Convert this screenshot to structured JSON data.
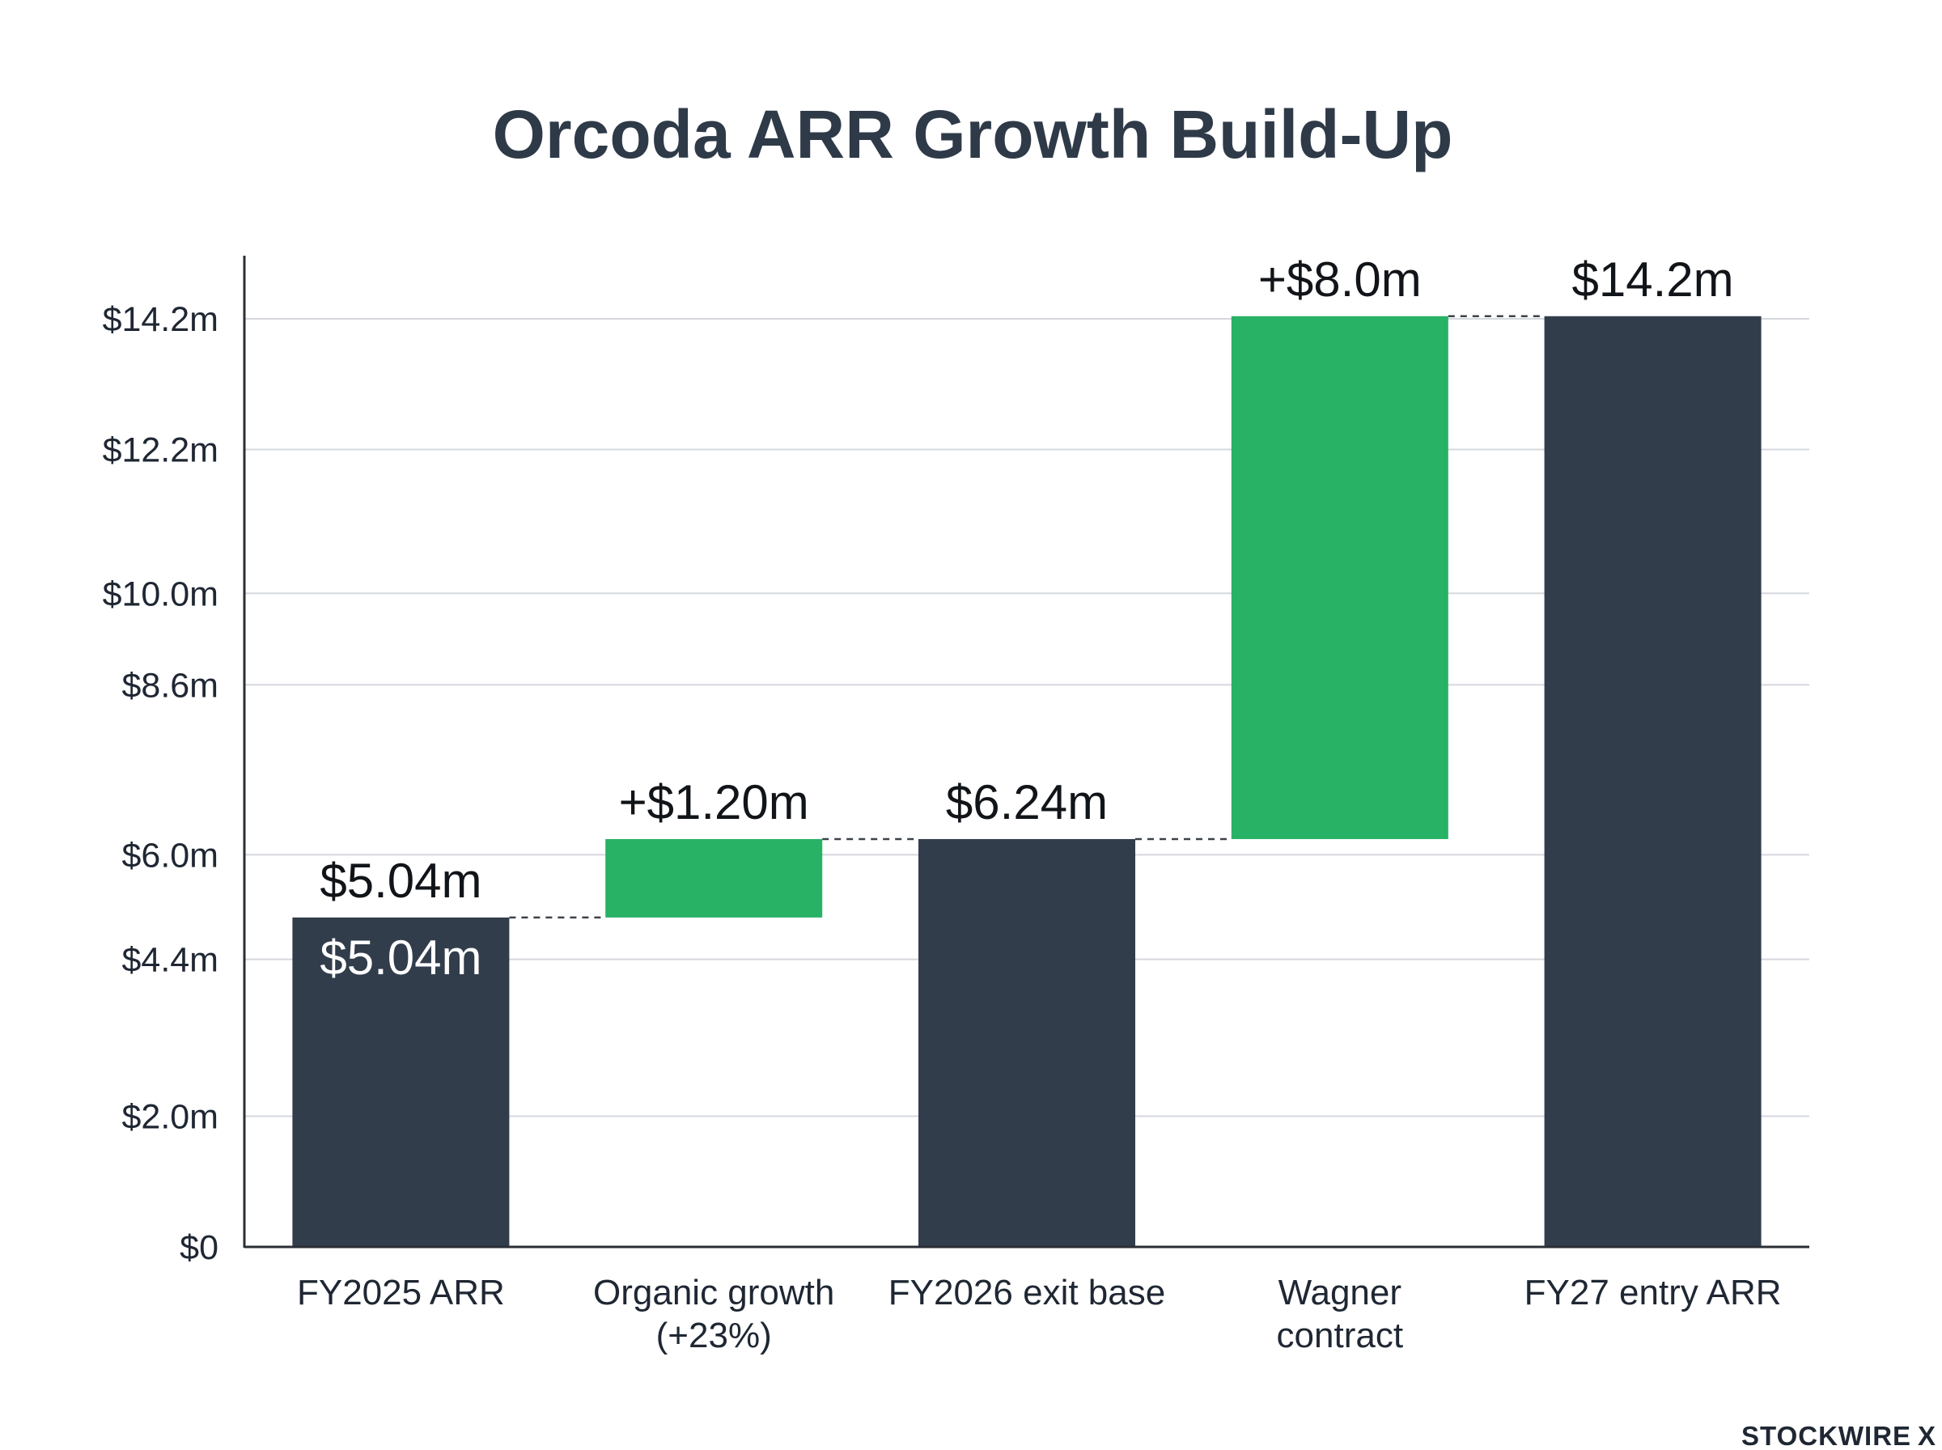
{
  "chart_data": {
    "type": "bar",
    "subtype": "waterfall",
    "title": "Orcoda ARR Growth Build-Up",
    "xlabel": "",
    "ylabel": "",
    "ylim": [
      0,
      14.2
    ],
    "y_ticks": [
      {
        "value": 0,
        "label": "$0"
      },
      {
        "value": 2.0,
        "label": "$2.0m"
      },
      {
        "value": 4.4,
        "label": "$4.4m"
      },
      {
        "value": 6.0,
        "label": "$6.0m"
      },
      {
        "value": 8.6,
        "label": "$8.6m"
      },
      {
        "value": 10.0,
        "label": "$10.0m"
      },
      {
        "value": 12.2,
        "label": "$12.2m"
      },
      {
        "value": 14.2,
        "label": "$14.2m"
      }
    ],
    "grid": true,
    "categories": [
      [
        "FY2025 ARR"
      ],
      [
        "Organic growth",
        "(+23%)"
      ],
      [
        "FY2026 exit base"
      ],
      [
        "Wagner",
        "contract"
      ],
      [
        "FY27 entry ARR"
      ]
    ],
    "bars": [
      {
        "kind": "total",
        "start": 0,
        "end": 5.04,
        "label": "$5.04m",
        "inner_label": "$5.04m"
      },
      {
        "kind": "increase",
        "start": 5.04,
        "end": 6.24,
        "label": "+$1.20m"
      },
      {
        "kind": "total",
        "start": 0,
        "end": 6.24,
        "label": "$6.24m"
      },
      {
        "kind": "increase",
        "start": 6.24,
        "end": 14.24,
        "label": "+$8.0m"
      },
      {
        "kind": "total",
        "start": 0,
        "end": 14.24,
        "label": "$14.2m"
      }
    ],
    "colors": {
      "total": "#323d4c",
      "increase": "#27b265"
    }
  },
  "branding": {
    "text": "STOCKWIRE",
    "mark": "X"
  }
}
